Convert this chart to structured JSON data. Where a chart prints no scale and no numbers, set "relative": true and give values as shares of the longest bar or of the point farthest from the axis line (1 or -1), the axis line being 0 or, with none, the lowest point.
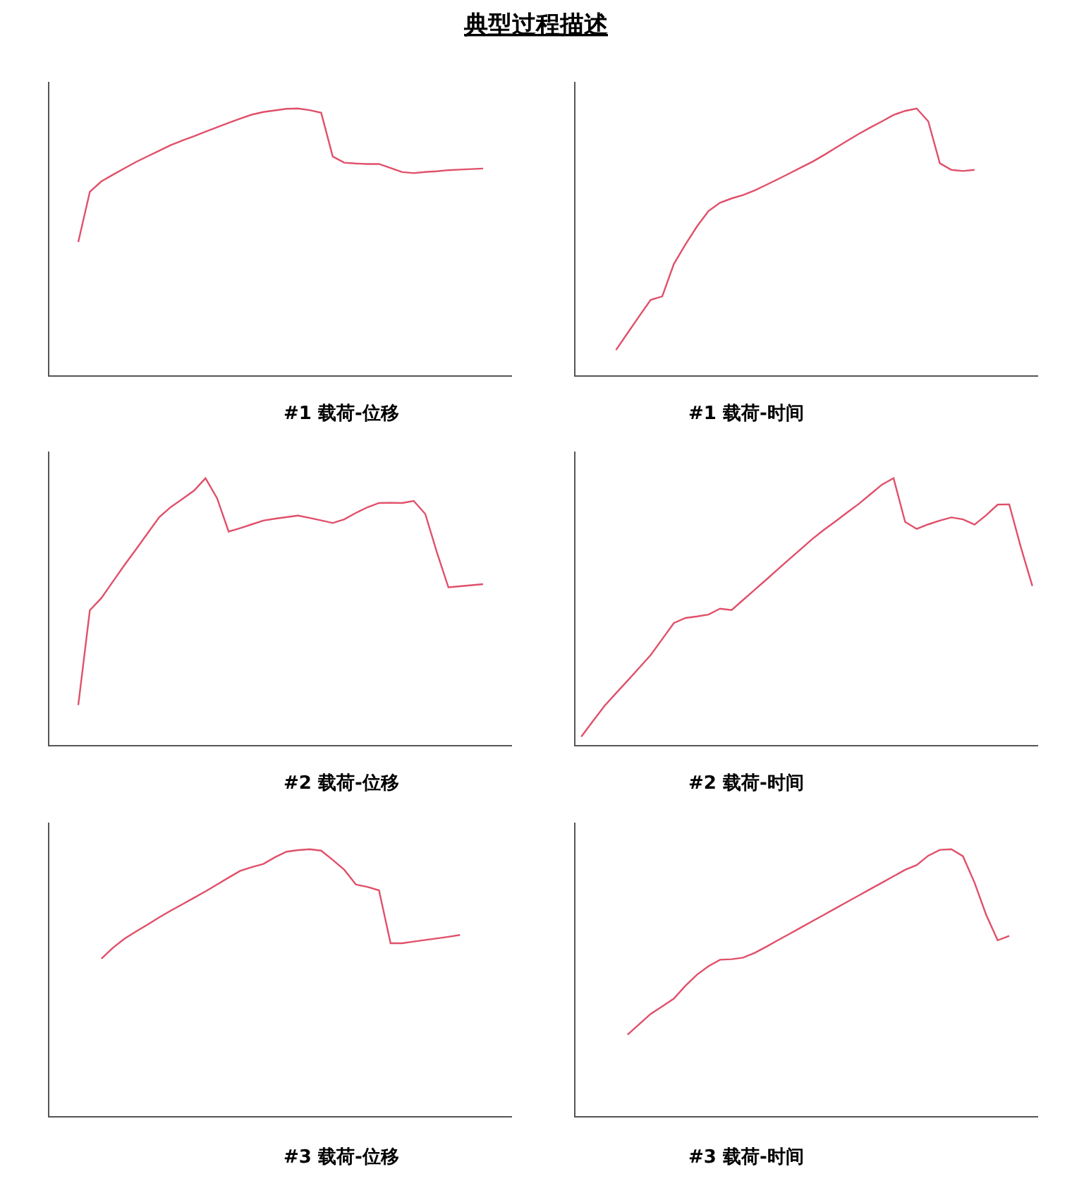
{
  "chart_data": [
    {
      "type": "line",
      "title": "#1 载荷-位移",
      "annotations": [
        "典型过程描述"
      ],
      "relative": true,
      "categories": [
        null,
        null,
        null,
        null,
        null,
        null,
        null,
        null,
        null,
        null,
        null,
        null,
        null,
        null,
        null,
        null,
        null,
        null,
        null,
        null,
        null,
        null,
        null,
        null,
        null,
        null,
        null,
        null,
        null,
        null,
        null,
        null,
        null,
        null,
        null,
        null,
        null,
        null,
        null,
        null
      ],
      "series": [
        {
          "color": "#e0506a",
          "values": [
            null,
            null,
            0.5,
            0.688,
            0.727,
            0.752,
            0.776,
            0.8,
            0.821,
            0.842,
            0.863,
            0.88,
            0.896,
            0.913,
            0.93,
            0.946,
            0.962,
            0.977,
            0.987,
            0.993,
            0.999,
            1.0,
            0.994,
            0.984,
            0.82,
            0.797,
            0.794,
            0.792,
            0.792,
            0.777,
            0.762,
            0.758,
            0.762,
            0.765,
            0.769,
            0.771,
            0.773,
            0.775,
            null,
            null
          ]
        }
      ]
    },
    {
      "type": "line",
      "title": "#1 载荷-时间",
      "relative": true,
      "categories": [
        null,
        null,
        null,
        null,
        null,
        null,
        null,
        null,
        null,
        null,
        null,
        null,
        null,
        null,
        null,
        null,
        null,
        null,
        null,
        null,
        null,
        null,
        null,
        null,
        null,
        null,
        null,
        null,
        null,
        null,
        null,
        null,
        null,
        null,
        null,
        null,
        null,
        null,
        null,
        null
      ],
      "series": [
        {
          "color": "#e0506a",
          "values": [
            null,
            null,
            null,
            0.095,
            0.158,
            0.221,
            0.283,
            0.296,
            0.417,
            0.49,
            0.558,
            0.616,
            0.647,
            0.663,
            0.676,
            0.693,
            0.714,
            0.735,
            0.757,
            0.779,
            0.801,
            0.826,
            0.853,
            0.879,
            0.905,
            0.929,
            0.952,
            0.976,
            0.991,
            1.0,
            0.952,
            0.795,
            0.77,
            0.766,
            0.77,
            null,
            null,
            null,
            null,
            null
          ]
        }
      ]
    },
    {
      "type": "line",
      "title": "#2 载荷-位移",
      "relative": true,
      "categories": [
        null,
        null,
        null,
        null,
        null,
        null,
        null,
        null,
        null,
        null,
        null,
        null,
        null,
        null,
        null,
        null,
        null,
        null,
        null,
        null,
        null,
        null,
        null,
        null,
        null,
        null,
        null,
        null,
        null,
        null,
        null,
        null,
        null,
        null,
        null,
        null,
        null,
        null,
        null,
        null
      ],
      "series": [
        {
          "color": "#e0506a",
          "values": [
            null,
            null,
            0.15,
            0.505,
            0.551,
            0.613,
            0.675,
            0.734,
            0.794,
            0.854,
            0.892,
            0.922,
            0.953,
            1.0,
            0.925,
            0.8,
            0.813,
            0.827,
            0.841,
            0.848,
            0.854,
            0.86,
            0.851,
            0.842,
            0.832,
            0.846,
            0.87,
            0.891,
            0.907,
            0.908,
            0.907,
            0.915,
            0.866,
            0.723,
            0.591,
            0.595,
            0.599,
            0.603,
            null,
            null
          ]
        }
      ]
    },
    {
      "type": "line",
      "title": "#2 载荷-时间",
      "relative": true,
      "categories": [
        null,
        null,
        null,
        null,
        null,
        null,
        null,
        null,
        null,
        null,
        null,
        null,
        null,
        null,
        null,
        null,
        null,
        null,
        null,
        null,
        null,
        null,
        null,
        null,
        null,
        null,
        null,
        null,
        null,
        null,
        null,
        null,
        null,
        null,
        null,
        null,
        null,
        null,
        null,
        null
      ],
      "series": [
        {
          "color": "#e0506a",
          "values": [
            0.031,
            0.089,
            0.146,
            0.194,
            0.241,
            0.289,
            0.337,
            0.397,
            0.457,
            0.476,
            0.482,
            0.489,
            0.511,
            0.506,
            0.544,
            0.582,
            0.62,
            0.659,
            0.697,
            0.735,
            0.773,
            0.807,
            0.839,
            0.872,
            0.904,
            0.94,
            0.976,
            1.0,
            0.836,
            0.81,
            0.827,
            0.841,
            0.853,
            0.846,
            0.826,
            0.861,
            0.901,
            0.902,
            0.742,
            0.596
          ]
        }
      ]
    },
    {
      "type": "line",
      "title": "#3 载荷-位移",
      "relative": true,
      "categories": [
        null,
        null,
        null,
        null,
        null,
        null,
        null,
        null,
        null,
        null,
        null,
        null,
        null,
        null,
        null,
        null,
        null,
        null,
        null,
        null,
        null,
        null,
        null,
        null,
        null,
        null,
        null,
        null,
        null,
        null,
        null,
        null,
        null,
        null,
        null,
        null,
        null,
        null,
        null,
        null
      ],
      "series": [
        {
          "color": "#e0506a",
          "values": [
            null,
            null,
            null,
            null,
            0.59,
            0.631,
            0.665,
            0.692,
            0.718,
            0.745,
            0.77,
            0.794,
            0.818,
            0.842,
            0.868,
            0.894,
            0.919,
            0.933,
            0.945,
            0.97,
            0.991,
            0.997,
            1.0,
            0.995,
            0.96,
            0.923,
            0.868,
            0.859,
            0.846,
            0.648,
            0.648,
            0.654,
            0.66,
            0.666,
            0.672,
            0.679,
            null,
            null,
            null,
            null
          ]
        }
      ]
    },
    {
      "type": "line",
      "title": "#3 载荷-时间",
      "relative": true,
      "categories": [
        null,
        null,
        null,
        null,
        null,
        null,
        null,
        null,
        null,
        null,
        null,
        null,
        null,
        null,
        null,
        null,
        null,
        null,
        null,
        null,
        null,
        null,
        null,
        null,
        null,
        null,
        null,
        null,
        null,
        null,
        null,
        null,
        null,
        null,
        null,
        null,
        null,
        null,
        null,
        null
      ],
      "series": [
        {
          "color": "#e0506a",
          "values": [
            null,
            null,
            null,
            null,
            0.305,
            0.344,
            0.383,
            0.411,
            0.44,
            0.488,
            0.53,
            0.562,
            0.586,
            0.588,
            0.594,
            0.612,
            0.635,
            0.659,
            0.683,
            0.707,
            0.731,
            0.755,
            0.779,
            0.803,
            0.827,
            0.851,
            0.875,
            0.899,
            0.923,
            0.941,
            0.976,
            0.998,
            1.0,
            0.974,
            0.875,
            0.755,
            0.659,
            0.675,
            null,
            null
          ]
        }
      ]
    }
  ]
}
